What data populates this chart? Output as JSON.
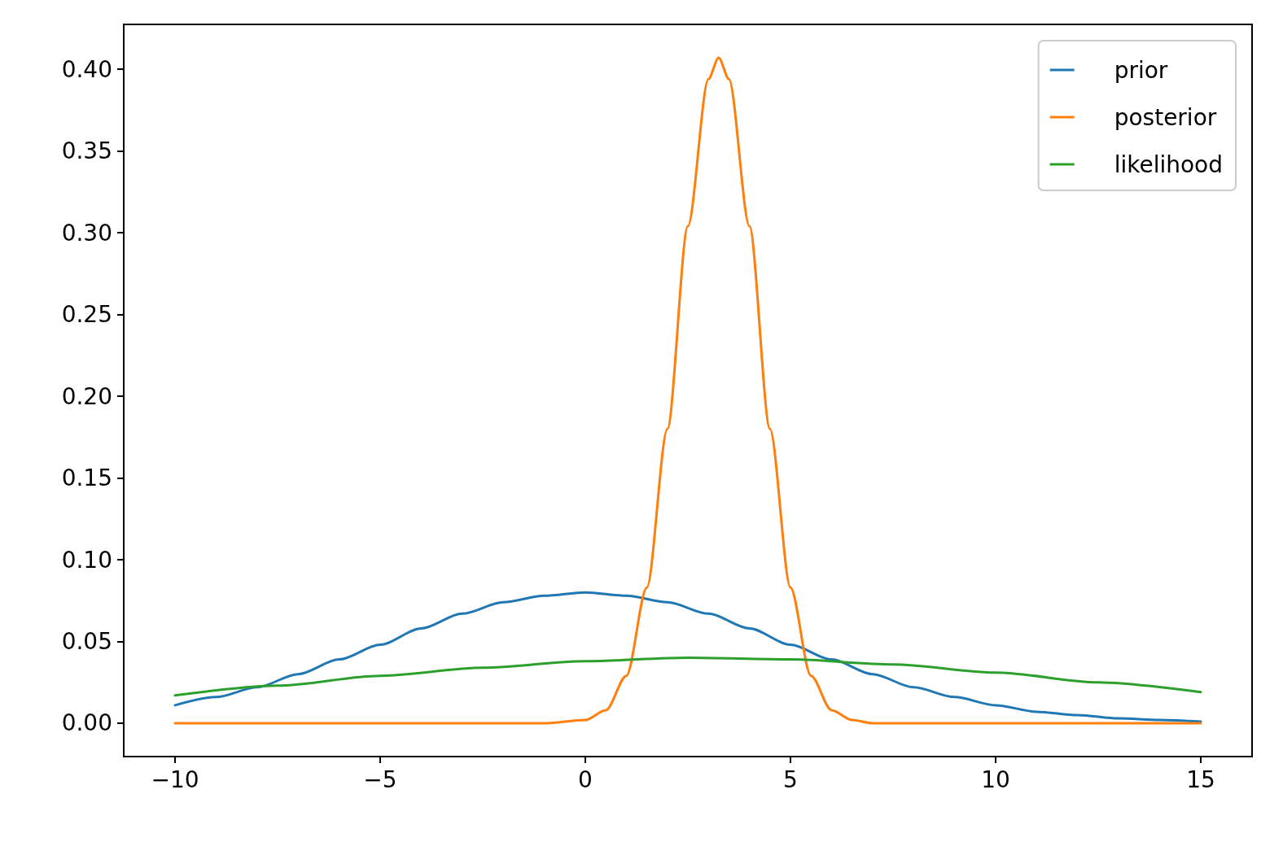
{
  "chart_data": {
    "type": "line",
    "xlim": [
      -11.25,
      16.25
    ],
    "ylim": [
      -0.0204,
      0.4274
    ],
    "xticks": [
      {
        "value": -10,
        "label": "−10"
      },
      {
        "value": -5,
        "label": "−5"
      },
      0,
      5,
      10,
      15
    ],
    "yticks": [
      {
        "value": 0,
        "label": "0.00"
      },
      {
        "value": 0.05,
        "label": "0.05"
      },
      {
        "value": 0.1,
        "label": "0.10"
      },
      {
        "value": 0.15,
        "label": "0.15"
      },
      {
        "value": 0.2,
        "label": "0.20"
      },
      {
        "value": 0.25,
        "label": "0.25"
      },
      {
        "value": 0.3,
        "label": "0.30"
      },
      {
        "value": 0.35,
        "label": "0.35"
      },
      {
        "value": 0.4,
        "label": "0.40"
      }
    ],
    "grid": false,
    "legend": "top right",
    "marker": "none",
    "line_style": "solid",
    "series": [
      {
        "name": "prior",
        "color": "#1f77b4",
        "x": [
          -10,
          -9,
          -8,
          -7,
          -6,
          -5,
          -4,
          -3,
          -2,
          -1,
          0,
          1,
          2,
          3,
          4,
          5,
          6,
          7,
          8,
          9,
          10,
          11,
          12,
          13,
          14,
          15
        ],
        "values": [
          0.011,
          0.016,
          0.022,
          0.03,
          0.039,
          0.048,
          0.058,
          0.067,
          0.074,
          0.078,
          0.08,
          0.078,
          0.074,
          0.067,
          0.058,
          0.048,
          0.039,
          0.03,
          0.022,
          0.016,
          0.011,
          0.007,
          0.005,
          0.003,
          0.002,
          0.001
        ]
      },
      {
        "name": "posterior",
        "color": "#ff7f0e",
        "x": [
          -10,
          -1,
          0,
          0.5,
          1,
          1.5,
          2,
          2.5,
          3,
          3.25,
          3.5,
          4,
          4.5,
          5,
          5.5,
          6,
          6.5,
          7,
          15
        ],
        "values": [
          0,
          0,
          0.002,
          0.008,
          0.029,
          0.083,
          0.18,
          0.304,
          0.394,
          0.407,
          0.394,
          0.304,
          0.18,
          0.083,
          0.029,
          0.008,
          0.002,
          0,
          0
        ]
      },
      {
        "name": "likelihood",
        "color": "#2ca02c",
        "x": [
          -10,
          -7.5,
          -5,
          -2.5,
          0,
          2.5,
          5,
          7.5,
          10,
          12.5,
          15
        ],
        "values": [
          0.017,
          0.023,
          0.029,
          0.034,
          0.038,
          0.04,
          0.039,
          0.036,
          0.031,
          0.025,
          0.019
        ]
      }
    ]
  }
}
